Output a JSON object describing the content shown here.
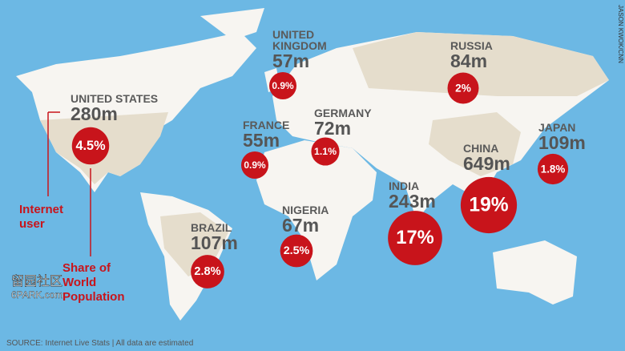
{
  "countries": [
    {
      "name": [
        "UNITED STATES"
      ],
      "users": "280m",
      "share": {
        "value": 4.5,
        "label": "4.5%"
      }
    },
    {
      "name": [
        "UNITED",
        "KINGDOM"
      ],
      "users": "57m",
      "share": {
        "value": 0.9,
        "label": "0.9%"
      }
    },
    {
      "name": [
        "RUSSIA"
      ],
      "users": "84m",
      "share": {
        "value": 2,
        "label": "2%"
      }
    },
    {
      "name": [
        "GERMANY"
      ],
      "users": "72m",
      "share": {
        "value": 1.1,
        "label": "1.1%"
      }
    },
    {
      "name": [
        "FRANCE"
      ],
      "users": "55m",
      "share": {
        "value": 0.9,
        "label": "0.9%"
      }
    },
    {
      "name": [
        "JAPAN"
      ],
      "users": "109m",
      "share": {
        "value": 1.8,
        "label": "1.8%"
      }
    },
    {
      "name": [
        "CHINA"
      ],
      "users": "649m",
      "share": {
        "value": 19,
        "label": "19%"
      }
    },
    {
      "name": [
        "INDIA"
      ],
      "users": "243m",
      "share": {
        "value": 17,
        "label": "17%"
      }
    },
    {
      "name": [
        "NIGERIA"
      ],
      "users": "67m",
      "share": {
        "value": 2.5,
        "label": "2.5%"
      }
    },
    {
      "name": [
        "BRAZIL"
      ],
      "users": "107m",
      "share": {
        "value": 2.8,
        "label": "2.8%"
      }
    }
  ],
  "legend": {
    "users": [
      "Internet",
      "user"
    ],
    "share": [
      "Share of",
      "World",
      "Population"
    ]
  },
  "source": "SOURCE: Internet Live Stats | All data are estimated",
  "credit": "JASON KWOK/CNN",
  "watermark": [
    "留园社区",
    "6PARK.com"
  ]
}
